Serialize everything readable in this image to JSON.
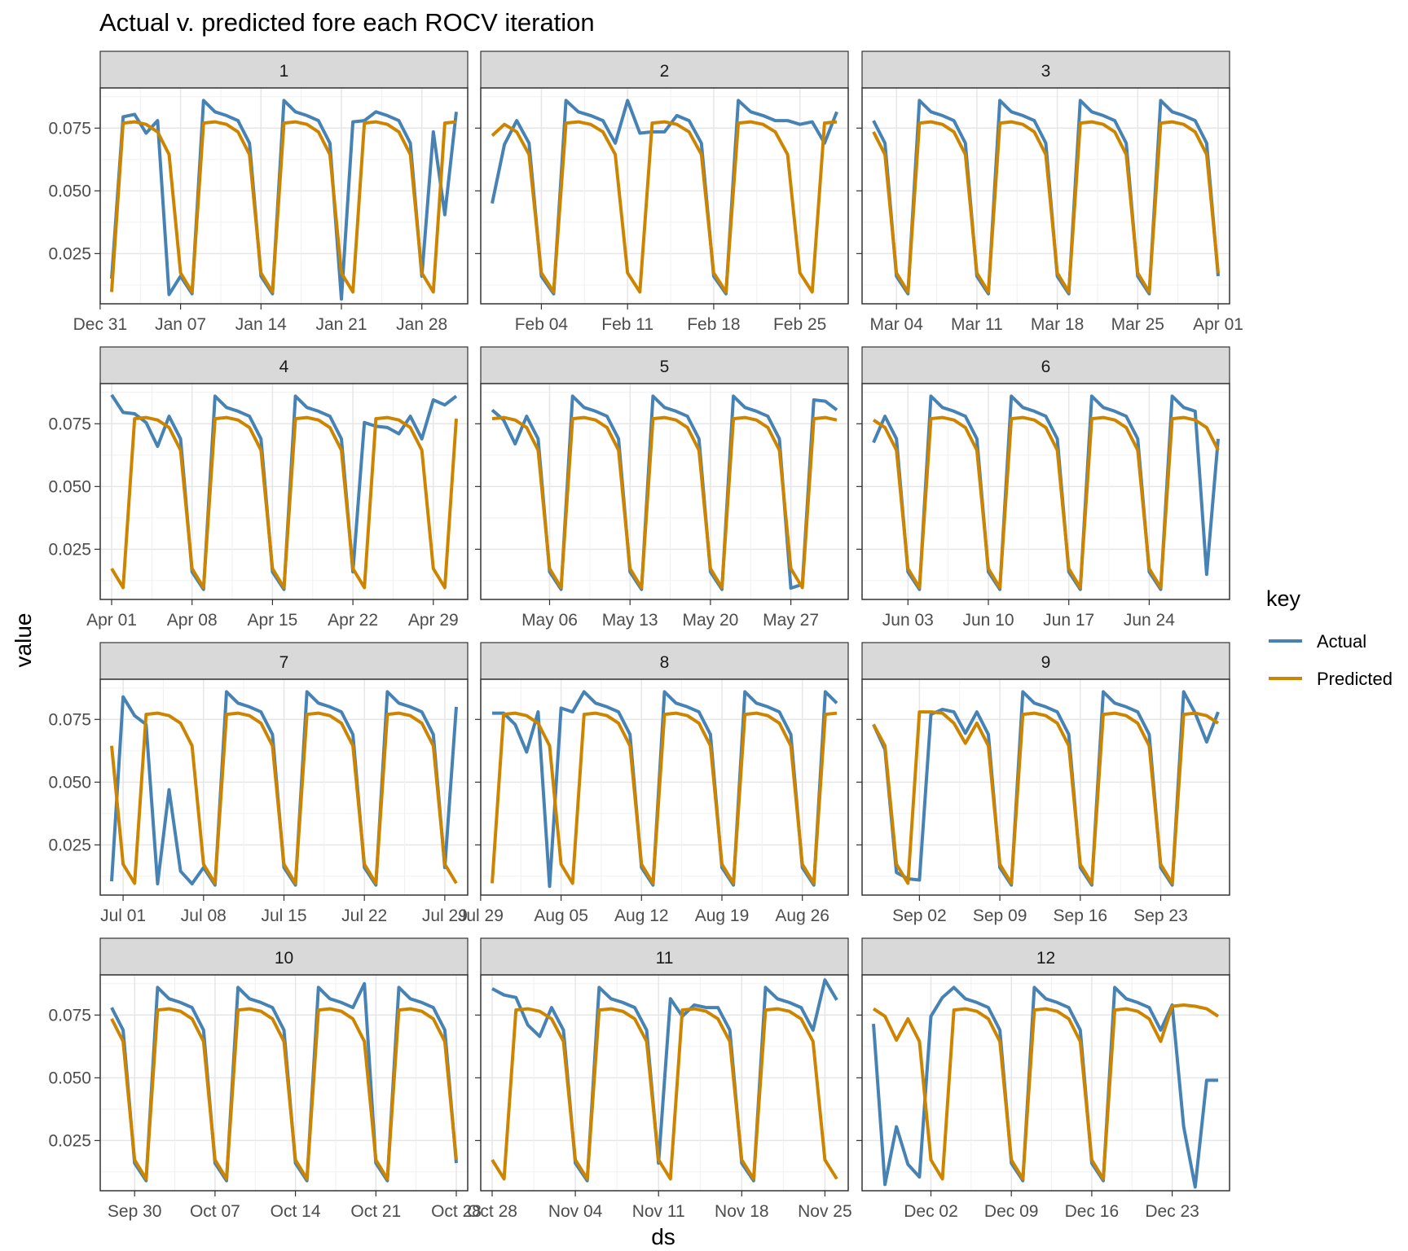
{
  "chart_data": {
    "type": "line",
    "title": "Actual v. predicted fore each ROCV iteration",
    "xlabel": "ds",
    "ylabel": "value",
    "ylim": [
      0.005,
      0.091
    ],
    "yticks": [
      0.025,
      0.05,
      0.075
    ],
    "ytick_labels": [
      "0.025",
      "0.050",
      "0.075"
    ],
    "grid": true,
    "legend": {
      "title": "key",
      "position": "right",
      "entries": [
        {
          "name": "Actual",
          "color": "#4682B4"
        },
        {
          "name": "Predicted",
          "color": "#CD8500"
        }
      ]
    },
    "weekly_pattern": {
      "predicted": [
        0.0173,
        0.0097,
        0.077,
        0.0775,
        0.0765,
        0.0735,
        0.0645
      ],
      "actual": [
        0.016,
        0.009,
        0.086,
        0.0815,
        0.08,
        0.078,
        0.069
      ]
    },
    "panels": [
      {
        "label": "1",
        "start": "2018-01-01",
        "days": 30,
        "xticks": [
          "2017-12-31",
          "2018-01-07",
          "2018-01-14",
          "2018-01-21",
          "2018-01-28"
        ],
        "xtick_labels": [
          "Dec 31",
          "Jan 07",
          "Jan 14",
          "Jan 21",
          "Jan 28"
        ],
        "actual_override": [
          [
            0,
            0.015
          ],
          [
            1,
            0.0795
          ],
          [
            2,
            0.0805
          ],
          [
            3,
            0.073
          ],
          [
            5,
            0.0087
          ],
          [
            20,
            0.0069
          ],
          [
            21,
            0.0775
          ],
          [
            22,
            0.078
          ],
          [
            28,
            0.0735
          ],
          [
            29,
            0.0405
          ]
        ]
      },
      {
        "label": "2",
        "start": "2018-01-31",
        "days": 28,
        "xticks": [
          "2018-02-04",
          "2018-02-11",
          "2018-02-18",
          "2018-02-25"
        ],
        "xtick_labels": [
          "Feb 04",
          "Feb 11",
          "Feb 18",
          "Feb 25"
        ],
        "predicted_override": [
          [
            0,
            0.072
          ]
        ],
        "actual_override": [
          [
            0,
            0.045
          ],
          [
            1,
            0.0685
          ],
          [
            11,
            0.086
          ],
          [
            12,
            0.073
          ],
          [
            13,
            0.0735
          ],
          [
            14,
            0.0735
          ],
          [
            27,
            0.069
          ],
          [
            26,
            0.0775
          ],
          [
            25,
            0.0765
          ],
          [
            24,
            0.078
          ]
        ]
      },
      {
        "label": "3",
        "start": "2018-03-02",
        "days": 30,
        "xticks": [
          "2018-03-04",
          "2018-03-11",
          "2018-03-18",
          "2018-03-25",
          "2018-04-01"
        ],
        "xtick_labels": [
          "Mar 04",
          "Mar 11",
          "Mar 18",
          "Mar 25",
          "Apr 01"
        ],
        "actual_override": []
      },
      {
        "label": "4",
        "start": "2018-04-01",
        "days": 30,
        "xticks": [
          "2018-04-01",
          "2018-04-08",
          "2018-04-15",
          "2018-04-22",
          "2018-04-29"
        ],
        "xtick_labels": [
          "Apr 01",
          "Apr 08",
          "Apr 15",
          "Apr 22",
          "Apr 29"
        ],
        "actual_override": [
          [
            0,
            0.0865
          ],
          [
            1,
            0.0795
          ],
          [
            2,
            0.079
          ],
          [
            3,
            0.0755
          ],
          [
            4,
            0.066
          ],
          [
            22,
            0.0755
          ],
          [
            23,
            0.074
          ],
          [
            24,
            0.0735
          ],
          [
            25,
            0.071
          ],
          [
            29,
            0.0825
          ],
          [
            28,
            0.0845
          ]
        ]
      },
      {
        "label": "5",
        "start": "2018-05-01",
        "days": 30,
        "xticks": [
          "2018-05-06",
          "2018-05-13",
          "2018-05-20",
          "2018-05-27"
        ],
        "xtick_labels": [
          "May 06",
          "May 13",
          "May 20",
          "May 27"
        ],
        "actual_override": [
          [
            0,
            0.0805
          ],
          [
            1,
            0.0765
          ],
          [
            2,
            0.067
          ],
          [
            26,
            0.0095
          ],
          [
            27,
            0.011
          ],
          [
            28,
            0.0845
          ],
          [
            29,
            0.084
          ],
          [
            30,
            0.0805
          ]
        ]
      },
      {
        "label": "6",
        "start": "2018-05-31",
        "days": 30,
        "xticks": [
          "2018-06-03",
          "2018-06-10",
          "2018-06-17",
          "2018-06-24"
        ],
        "xtick_labels": [
          "Jun 03",
          "Jun 10",
          "Jun 17",
          "Jun 24"
        ],
        "actual_override": [
          [
            0,
            0.0675
          ],
          [
            29,
            0.015
          ]
        ]
      },
      {
        "label": "7",
        "start": "2018-06-30",
        "days": 30,
        "xticks": [
          "2018-07-01",
          "2018-07-08",
          "2018-07-15",
          "2018-07-22",
          "2018-07-29"
        ],
        "xtick_labels": [
          "Jul 01",
          "Jul 08",
          "Jul 15",
          "Jul 22",
          "Jul 29"
        ],
        "actual_override": [
          [
            0,
            0.0105
          ],
          [
            1,
            0.084
          ],
          [
            2,
            0.0765
          ],
          [
            3,
            0.073
          ],
          [
            4,
            0.0095
          ],
          [
            5,
            0.047
          ],
          [
            6,
            0.0145
          ],
          [
            7,
            0.0095
          ],
          [
            30,
            0.08
          ]
        ]
      },
      {
        "label": "8",
        "start": "2018-07-30",
        "days": 30,
        "xticks": [
          "2018-07-29",
          "2018-08-05",
          "2018-08-12",
          "2018-08-19",
          "2018-08-26"
        ],
        "xtick_labels": [
          "Jul 29",
          "Aug 05",
          "Aug 12",
          "Aug 19",
          "Aug 26"
        ],
        "actual_override": [
          [
            0,
            0.0775
          ],
          [
            1,
            0.0775
          ],
          [
            2,
            0.073
          ],
          [
            3,
            0.062
          ],
          [
            5,
            0.0085
          ],
          [
            6,
            0.0795
          ],
          [
            7,
            0.078
          ]
        ]
      },
      {
        "label": "9",
        "start": "2018-08-29",
        "days": 30,
        "xticks": [
          "2018-09-02",
          "2018-09-09",
          "2018-09-16",
          "2018-09-23"
        ],
        "xtick_labels": [
          "Sep 02",
          "Sep 09",
          "Sep 16",
          "Sep 23"
        ],
        "predicted_override": [
          [
            0,
            0.073
          ],
          [
            1,
            0.0645
          ],
          [
            2,
            0.0173
          ],
          [
            3,
            0.0097
          ],
          [
            4,
            0.078
          ],
          [
            5,
            0.078
          ],
          [
            6,
            0.0775
          ],
          [
            7,
            0.0735
          ],
          [
            8,
            0.0655
          ]
        ],
        "actual_override": [
          [
            0,
            0.073
          ],
          [
            1,
            0.063
          ],
          [
            2,
            0.014
          ],
          [
            3,
            0.0115
          ],
          [
            4,
            0.011
          ],
          [
            5,
            0.077
          ],
          [
            6,
            0.079
          ],
          [
            7,
            0.078
          ],
          [
            8,
            0.0695
          ],
          [
            29,
            0.066
          ],
          [
            28,
            0.0775
          ]
        ]
      },
      {
        "label": "10",
        "start": "2018-09-28",
        "days": 30,
        "xticks": [
          "2018-09-30",
          "2018-10-07",
          "2018-10-14",
          "2018-10-21",
          "2018-10-28"
        ],
        "xtick_labels": [
          "Sep 30",
          "Oct 07",
          "Oct 14",
          "Oct 21",
          "Oct 28"
        ],
        "actual_override": [
          [
            22,
            0.0875
          ]
        ]
      },
      {
        "label": "11",
        "start": "2018-10-28",
        "days": 29,
        "xticks": [
          "2018-10-28",
          "2018-11-04",
          "2018-11-11",
          "2018-11-18",
          "2018-11-25"
        ],
        "xtick_labels": [
          "Oct 28",
          "Nov 04",
          "Nov 11",
          "Nov 18",
          "Nov 25"
        ],
        "actual_override": [
          [
            0,
            0.0855
          ],
          [
            1,
            0.083
          ],
          [
            2,
            0.082
          ],
          [
            3,
            0.071
          ],
          [
            4,
            0.0665
          ],
          [
            15,
            0.0815
          ],
          [
            16,
            0.0745
          ],
          [
            17,
            0.079
          ],
          [
            18,
            0.078
          ],
          [
            28,
            0.089
          ],
          [
            29,
            0.081
          ]
        ]
      },
      {
        "label": "12",
        "start": "2018-11-27",
        "days": 30,
        "xticks": [
          "2018-12-02",
          "2018-12-09",
          "2018-12-16",
          "2018-12-23"
        ],
        "xtick_labels": [
          "Dec 02",
          "Dec 09",
          "Dec 16",
          "Dec 23"
        ],
        "predicted_override": [
          [
            0,
            0.0775
          ],
          [
            1,
            0.0745
          ],
          [
            2,
            0.065
          ],
          [
            26,
            0.0785
          ],
          [
            27,
            0.079
          ],
          [
            28,
            0.0785
          ],
          [
            29,
            0.0775
          ],
          [
            30,
            0.0745
          ]
        ],
        "actual_override": [
          [
            0,
            0.0715
          ],
          [
            1,
            0.0075
          ],
          [
            2,
            0.0305
          ],
          [
            3,
            0.0155
          ],
          [
            4,
            0.0105
          ],
          [
            5,
            0.0745
          ],
          [
            6,
            0.082
          ],
          [
            26,
            0.079
          ],
          [
            27,
            0.0305
          ],
          [
            28,
            0.0065
          ],
          [
            29,
            0.049
          ],
          [
            30,
            0.049
          ]
        ]
      }
    ]
  }
}
